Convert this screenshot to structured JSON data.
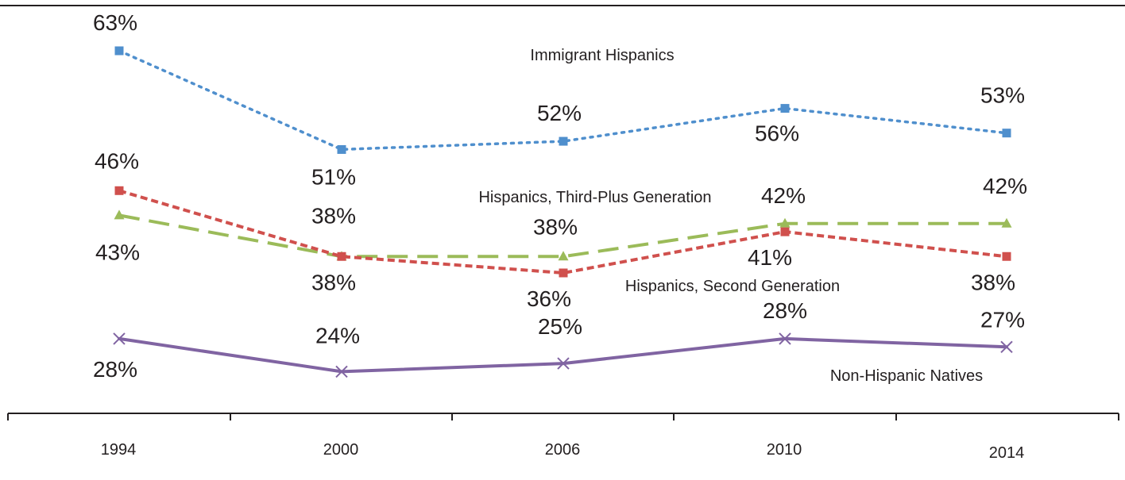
{
  "chart_data": {
    "type": "line",
    "categories": [
      "1994",
      "2000",
      "2006",
      "2010",
      "2014"
    ],
    "series": [
      {
        "name": "Immigrant Hispanics",
        "values": [
          63,
          51,
          52,
          56,
          53
        ],
        "color": "#4f8fcd",
        "dash": "dotted",
        "marker": "square"
      },
      {
        "name": "Hispanics, Third-Plus Generation",
        "values": [
          43,
          38,
          38,
          42,
          42
        ],
        "color": "#9bbb59",
        "dash": "long-dash",
        "marker": "triangle"
      },
      {
        "name": "Hispanics, Second Generation",
        "values": [
          46,
          38,
          36,
          41,
          38
        ],
        "color": "#d0504d",
        "dash": "dashed",
        "marker": "square"
      },
      {
        "name": "Non-Hispanic Natives",
        "values": [
          28,
          24,
          25,
          28,
          27
        ],
        "color": "#8064a2",
        "dash": "solid",
        "marker": "x"
      }
    ],
    "data_labels": [
      [
        "63%",
        "51%",
        "52%",
        "56%",
        "53%"
      ],
      [
        "43%",
        "38%",
        "38%",
        "42%",
        "42%"
      ],
      [
        "46%",
        "38%",
        "36%",
        "41%",
        "38%"
      ],
      [
        "28%",
        "24%",
        "25%",
        "28%",
        "27%"
      ]
    ],
    "ylim": [
      0,
      65
    ],
    "grid": false,
    "title": "",
    "xlabel": "",
    "ylabel": ""
  }
}
